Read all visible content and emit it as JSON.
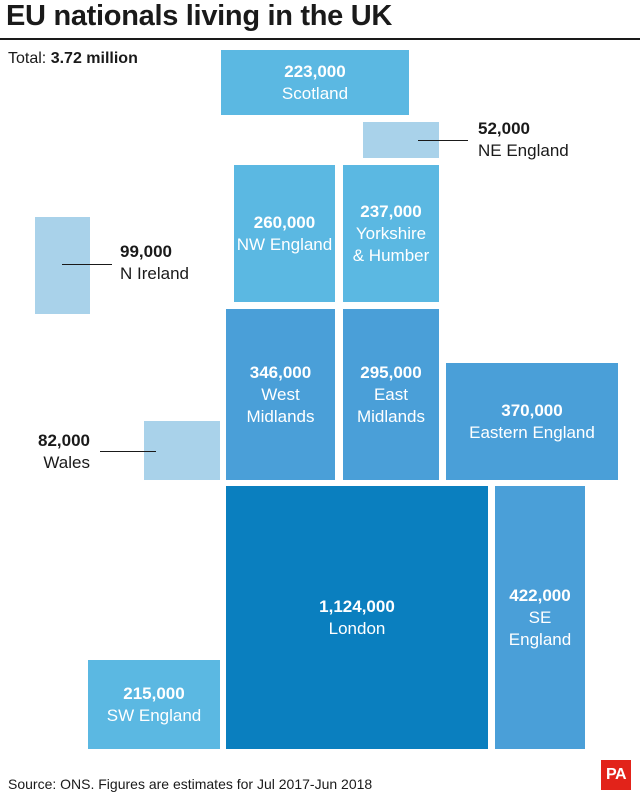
{
  "title": "EU nationals living in the UK",
  "total": {
    "label": "Total:",
    "value": "3.72 million"
  },
  "source": "Source: ONS. Figures are estimates for Jul 2017-Jun 2018",
  "logo": "PA",
  "colors": {
    "light": "#a9d2ea",
    "mid": "#5bb8e2",
    "mid_dark": "#4a9fd8",
    "dark": "#0a7fbf"
  },
  "chart_data": {
    "type": "treemap",
    "title": "EU nationals living in the UK",
    "total": "3.72 million",
    "regions": [
      {
        "name": "Scotland",
        "value": 223000,
        "label": "223,000",
        "name_display": "Scotland"
      },
      {
        "name": "NE England",
        "value": 52000,
        "label": "52,000",
        "name_display": "NE England"
      },
      {
        "name": "NW England",
        "value": 260000,
        "label": "260,000",
        "name_display": "NW England"
      },
      {
        "name": "Yorkshire & Humber",
        "value": 237000,
        "label": "237,000",
        "name_display": "Yorkshire\n& Humber"
      },
      {
        "name": "N Ireland",
        "value": 99000,
        "label": "99,000",
        "name_display": "N Ireland"
      },
      {
        "name": "West Midlands",
        "value": 346000,
        "label": "346,000",
        "name_display": "West\nMidlands"
      },
      {
        "name": "East Midlands",
        "value": 295000,
        "label": "295,000",
        "name_display": "East\nMidlands"
      },
      {
        "name": "Eastern England",
        "value": 370000,
        "label": "370,000",
        "name_display": "Eastern England"
      },
      {
        "name": "Wales",
        "value": 82000,
        "label": "82,000",
        "name_display": "Wales"
      },
      {
        "name": "London",
        "value": 1124000,
        "label": "1,124,000",
        "name_display": "London"
      },
      {
        "name": "SE England",
        "value": 422000,
        "label": "422,000",
        "name_display": "SE\nEngland"
      },
      {
        "name": "SW England",
        "value": 215000,
        "label": "215,000",
        "name_display": "SW England"
      }
    ]
  }
}
